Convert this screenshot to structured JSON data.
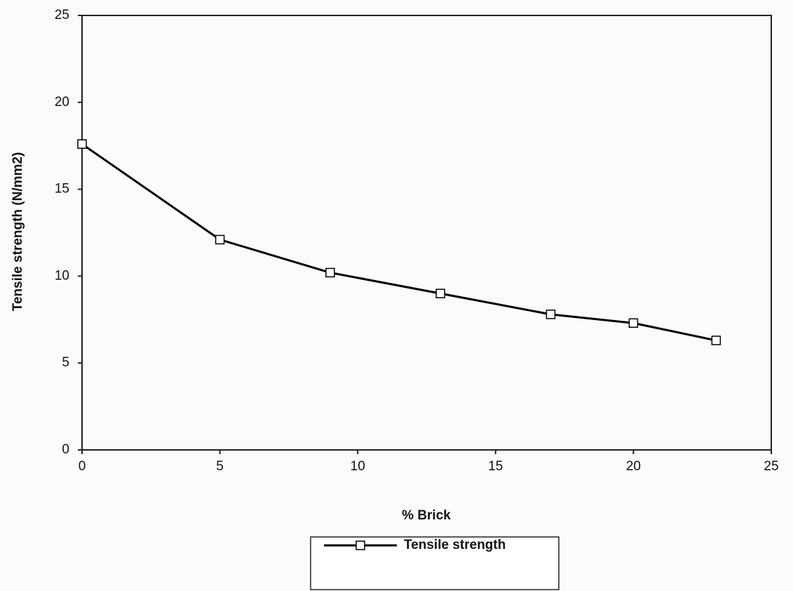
{
  "chart_data": {
    "type": "line",
    "x_label": "% Brick",
    "y_label": "Tensile strength (N/mm2)",
    "x": [
      0,
      5,
      9,
      13,
      17,
      20,
      23
    ],
    "series": [
      {
        "name": "Tensile strength",
        "color": "#000000",
        "values": [
          17.6,
          12.1,
          10.2,
          9.0,
          7.8,
          7.3,
          6.3
        ]
      }
    ],
    "xlim": [
      0,
      25
    ],
    "xticks": [
      0,
      5,
      10,
      15,
      20,
      25
    ],
    "ylim": [
      0,
      25
    ],
    "yticks": [
      0,
      5,
      10,
      15,
      20,
      25
    ],
    "grid": false,
    "legend": "bottom",
    "marker": "square"
  }
}
